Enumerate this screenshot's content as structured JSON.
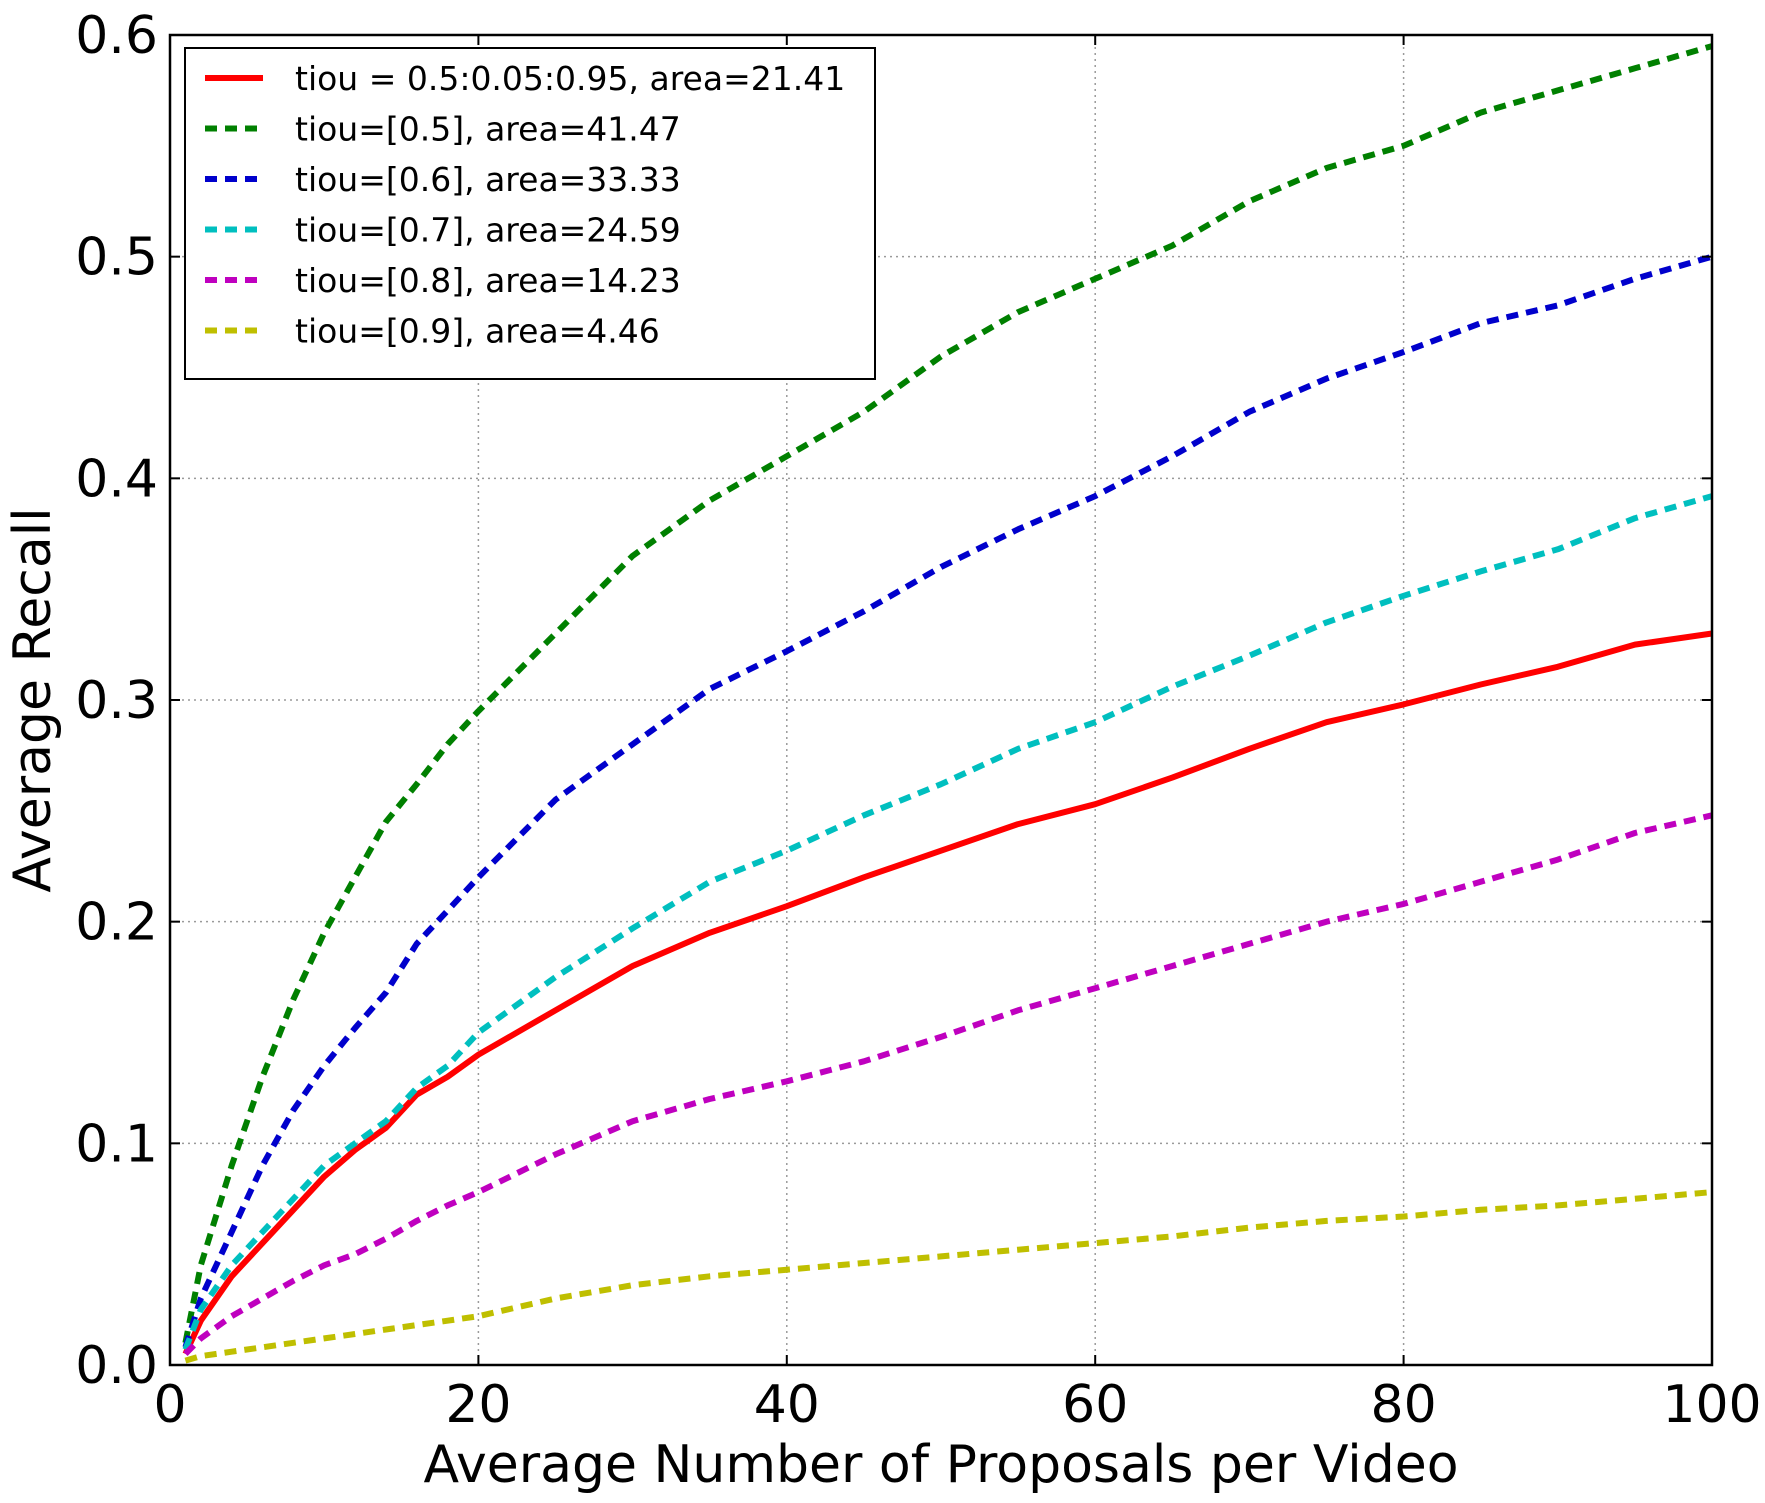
{
  "chart_data": {
    "type": "line",
    "title": "",
    "xlabel": "Average Number of Proposals per Video",
    "ylabel": "Average Recall",
    "xlim": [
      0,
      100
    ],
    "ylim": [
      0.0,
      0.6
    ],
    "xticks": [
      0,
      20,
      40,
      60,
      80,
      100
    ],
    "xtick_labels": [
      "0",
      "20",
      "40",
      "60",
      "80",
      "100"
    ],
    "yticks": [
      0.0,
      0.1,
      0.2,
      0.3,
      0.4,
      0.5,
      0.6
    ],
    "ytick_labels": [
      "0.0",
      "0.1",
      "0.2",
      "0.3",
      "0.4",
      "0.5",
      "0.6"
    ],
    "grid": true,
    "legend_position": "top-left",
    "x": [
      1,
      2,
      4,
      6,
      8,
      10,
      12,
      14,
      16,
      18,
      20,
      25,
      30,
      35,
      40,
      45,
      50,
      55,
      60,
      65,
      70,
      75,
      80,
      85,
      90,
      95,
      100
    ],
    "series": [
      {
        "name": "tiou = 0.5:0.05:0.95, area=21.41",
        "color": "#ff0000",
        "style": "solid",
        "values": [
          0.005,
          0.02,
          0.04,
          0.055,
          0.07,
          0.085,
          0.097,
          0.107,
          0.122,
          0.13,
          0.14,
          0.16,
          0.18,
          0.195,
          0.207,
          0.22,
          0.232,
          0.244,
          0.253,
          0.265,
          0.278,
          0.29,
          0.298,
          0.307,
          0.315,
          0.325,
          0.33
        ]
      },
      {
        "name": "tiou=[0.5], area=41.47",
        "color": "#008000",
        "style": "dashed",
        "values": [
          0.01,
          0.045,
          0.09,
          0.13,
          0.165,
          0.195,
          0.22,
          0.245,
          0.262,
          0.28,
          0.295,
          0.33,
          0.365,
          0.39,
          0.41,
          0.43,
          0.455,
          0.475,
          0.49,
          0.505,
          0.525,
          0.54,
          0.55,
          0.565,
          0.575,
          0.585,
          0.595
        ]
      },
      {
        "name": "tiou=[0.6], area=33.33",
        "color": "#0000cc",
        "style": "dashed",
        "values": [
          0.008,
          0.03,
          0.06,
          0.09,
          0.115,
          0.135,
          0.152,
          0.168,
          0.19,
          0.205,
          0.22,
          0.255,
          0.28,
          0.305,
          0.322,
          0.34,
          0.36,
          0.377,
          0.392,
          0.41,
          0.43,
          0.445,
          0.457,
          0.47,
          0.478,
          0.49,
          0.5
        ]
      },
      {
        "name": "tiou=[0.7], area=24.59",
        "color": "#00bfbf",
        "style": "dashed",
        "values": [
          0.007,
          0.025,
          0.045,
          0.06,
          0.075,
          0.09,
          0.1,
          0.11,
          0.125,
          0.135,
          0.15,
          0.175,
          0.197,
          0.218,
          0.232,
          0.248,
          0.262,
          0.278,
          0.29,
          0.306,
          0.32,
          0.335,
          0.347,
          0.358,
          0.368,
          0.382,
          0.392
        ]
      },
      {
        "name": "tiou=[0.8], area=14.23",
        "color": "#bf00bf",
        "style": "dashed",
        "values": [
          0.005,
          0.012,
          0.022,
          0.03,
          0.038,
          0.045,
          0.05,
          0.057,
          0.065,
          0.072,
          0.078,
          0.095,
          0.11,
          0.12,
          0.128,
          0.137,
          0.148,
          0.16,
          0.17,
          0.18,
          0.19,
          0.2,
          0.208,
          0.218,
          0.228,
          0.24,
          0.248
        ]
      },
      {
        "name": "tiou=[0.9], area=4.46",
        "color": "#bfbf00",
        "style": "dashed",
        "values": [
          0.002,
          0.004,
          0.006,
          0.008,
          0.01,
          0.012,
          0.014,
          0.016,
          0.018,
          0.02,
          0.022,
          0.03,
          0.036,
          0.04,
          0.043,
          0.046,
          0.049,
          0.052,
          0.055,
          0.058,
          0.062,
          0.065,
          0.067,
          0.07,
          0.072,
          0.075,
          0.078
        ]
      }
    ]
  }
}
